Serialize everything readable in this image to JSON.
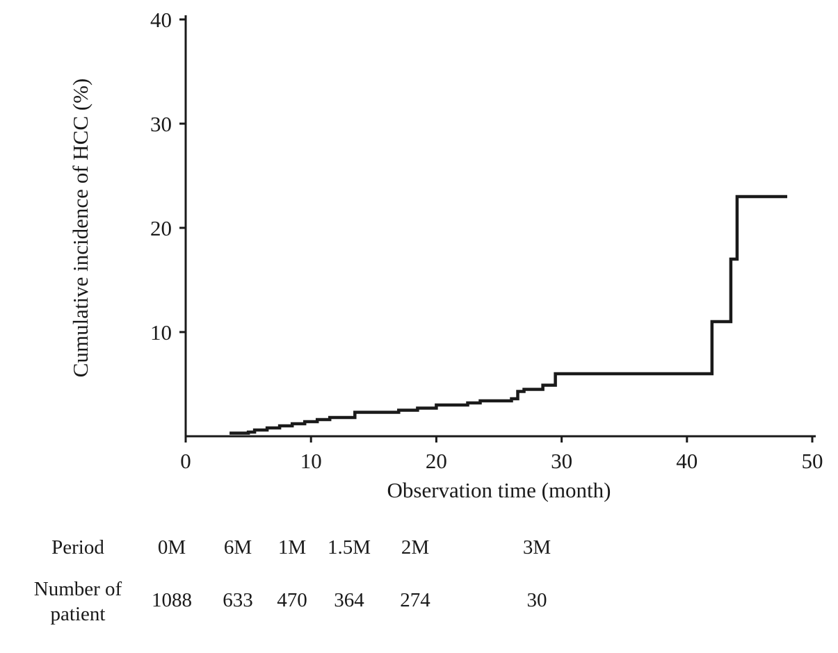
{
  "chart_data": {
    "type": "line",
    "subtype": "step-cumulative-incidence",
    "title": "",
    "xlabel": "Observation time (month)",
    "ylabel": "Cumulative incidence of HCC (%)",
    "xlim": [
      0,
      50
    ],
    "ylim": [
      0,
      40
    ],
    "xticks": [
      0,
      10,
      20,
      30,
      40,
      50
    ],
    "yticks": [
      10,
      20,
      30,
      40
    ],
    "grid": false,
    "legend": "none",
    "line_color": "#1a1a1a",
    "series": [
      {
        "name": "Cumulative incidence of HCC",
        "step": true,
        "points": [
          [
            3.5,
            0.3
          ],
          [
            5,
            0.4
          ],
          [
            5.5,
            0.6
          ],
          [
            6.5,
            0.8
          ],
          [
            7.5,
            1.0
          ],
          [
            8.5,
            1.2
          ],
          [
            9.5,
            1.4
          ],
          [
            10.5,
            1.6
          ],
          [
            11.5,
            1.8
          ],
          [
            13.5,
            2.3
          ],
          [
            17,
            2.5
          ],
          [
            18.5,
            2.7
          ],
          [
            20,
            3.0
          ],
          [
            22.5,
            3.2
          ],
          [
            23.5,
            3.4
          ],
          [
            26,
            3.6
          ],
          [
            26.5,
            4.3
          ],
          [
            27,
            4.5
          ],
          [
            28.5,
            4.9
          ],
          [
            29.5,
            6.0
          ],
          [
            42,
            11.0
          ],
          [
            43.5,
            17.0
          ],
          [
            44,
            23.0
          ],
          [
            48,
            23.0
          ]
        ]
      }
    ]
  },
  "risk_table": {
    "period_label": "Period",
    "count_label": "Number of patient",
    "periods": [
      "0M",
      "6M",
      "1M",
      "1.5M",
      "2M",
      "3M"
    ],
    "counts": [
      "1088",
      "633",
      "470",
      "364",
      "274",
      "30"
    ]
  }
}
